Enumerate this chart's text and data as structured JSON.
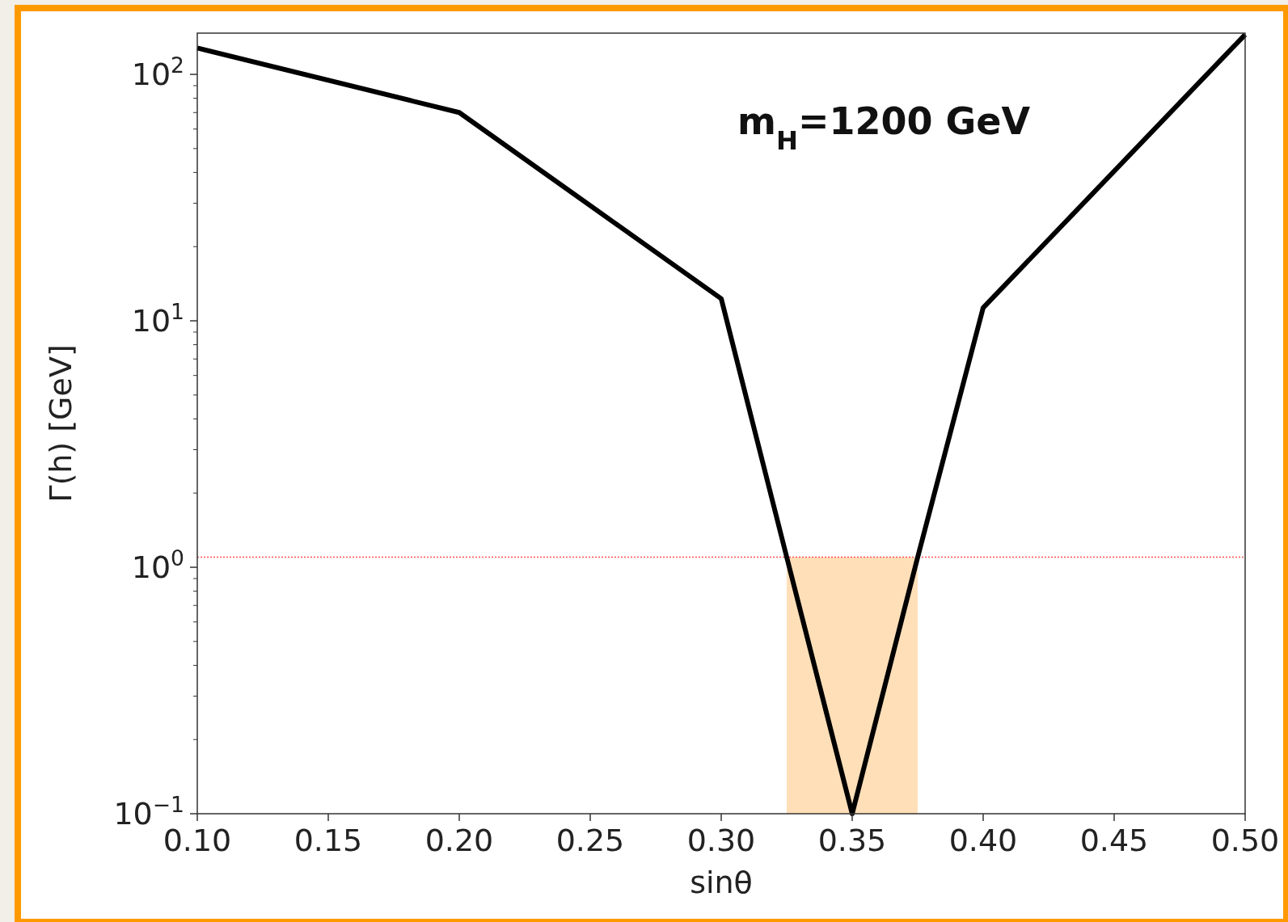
{
  "chart_data": {
    "type": "line",
    "xlabel": "sinθ",
    "ylabel": "Γ(h) [GeV]",
    "annotations": [
      "m$_{H}$=1200 GeV"
    ],
    "log": "y",
    "xlim": [
      0.1,
      0.5
    ],
    "ylim": [
      0.1,
      147
    ],
    "xticks": [
      {
        "value": 0.1,
        "label": "0.10"
      },
      {
        "value": 0.15,
        "label": "0.15"
      },
      {
        "value": 0.2,
        "label": "0.20"
      },
      {
        "value": 0.25,
        "label": "0.25"
      },
      {
        "value": 0.3,
        "label": "0.30"
      },
      {
        "value": 0.35,
        "label": "0.35"
      },
      {
        "value": 0.4,
        "label": "0.40"
      },
      {
        "value": 0.45,
        "label": "0.45"
      },
      {
        "value": 0.5,
        "label": "0.50"
      }
    ],
    "yticks": [
      {
        "value": 0.1,
        "label": "10$^{−1}$"
      },
      {
        "value": 0.2,
        "label": null
      },
      {
        "value": 0.3,
        "label": null
      },
      {
        "value": 0.4,
        "label": null
      },
      {
        "value": 0.5,
        "label": null
      },
      {
        "value": 0.6,
        "label": null
      },
      {
        "value": 0.7,
        "label": null
      },
      {
        "value": 0.8,
        "label": null
      },
      {
        "value": 0.9,
        "label": null
      },
      {
        "value": 1,
        "label": "10$^{0}$"
      },
      {
        "value": 2,
        "label": null
      },
      {
        "value": 3,
        "label": null
      },
      {
        "value": 4,
        "label": null
      },
      {
        "value": 5,
        "label": null
      },
      {
        "value": 6,
        "label": null
      },
      {
        "value": 7,
        "label": null
      },
      {
        "value": 8,
        "label": null
      },
      {
        "value": 9,
        "label": null
      },
      {
        "value": 10,
        "label": "10$^{1}$"
      },
      {
        "value": 20,
        "label": null
      },
      {
        "value": 30,
        "label": null
      },
      {
        "value": 40,
        "label": null
      },
      {
        "value": 50,
        "label": null
      },
      {
        "value": 60,
        "label": null
      },
      {
        "value": 70,
        "label": null
      },
      {
        "value": 80,
        "label": null
      },
      {
        "value": 90,
        "label": null
      },
      {
        "value": 100,
        "label": "10$^{2}$"
      }
    ],
    "series": [
      {
        "type": "area",
        "color": "#ffdcb0",
        "x": [
          0.325,
          0.375
        ],
        "values": [
          1.1,
          1.1
        ]
      },
      {
        "color": "#000000",
        "x": [
          0.1,
          0.2,
          0.3,
          0.325,
          0.35,
          0.375,
          0.4,
          0.5
        ],
        "values": [
          128,
          70,
          12.3,
          1.1,
          0.1,
          1.1,
          11.3,
          145
        ]
      }
    ],
    "ref_lines": [
      {
        "axis": "y",
        "value": 1.1,
        "color": "#ff5050",
        "line_style": "dotted"
      }
    ],
    "grid": false,
    "line_style": "solid",
    "marker": "none"
  }
}
